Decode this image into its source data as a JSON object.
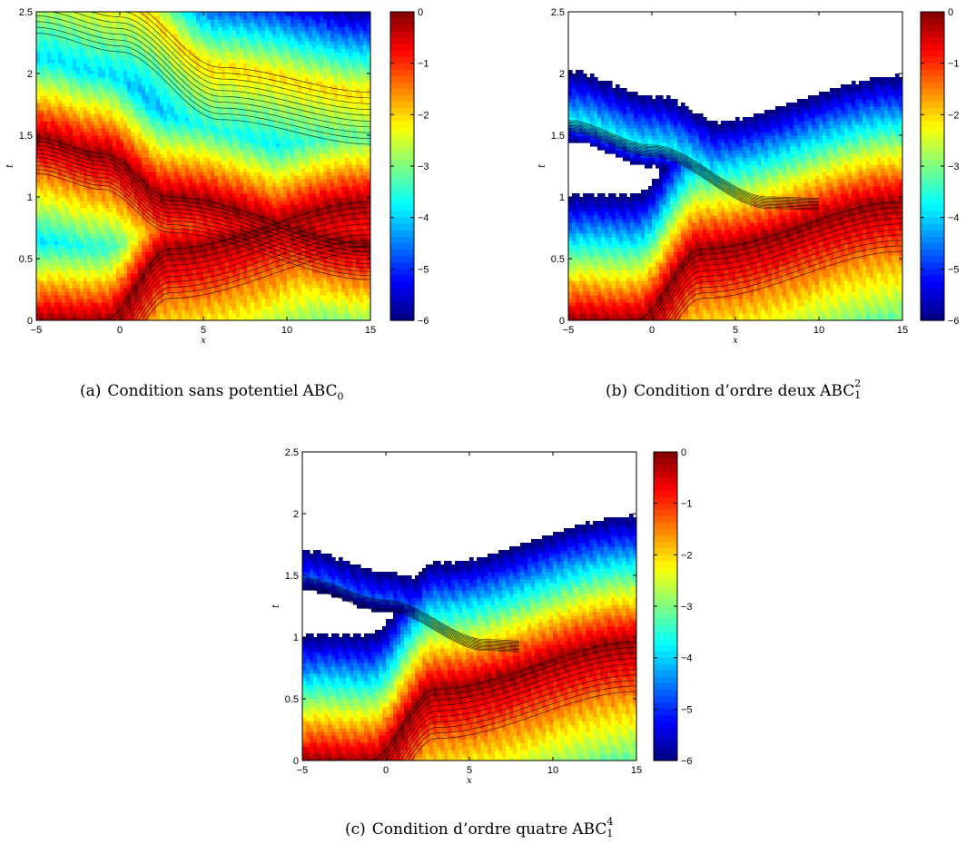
{
  "chart_data": [
    {
      "type": "contour",
      "panel": "(a)",
      "caption": {
        "label": "(a)",
        "text": "Condition sans potentiel",
        "abc": "ABC",
        "sub": "0",
        "sup": ""
      },
      "xlabel": "x",
      "ylabel": "t",
      "xlim": [
        -5,
        15
      ],
      "ylim": [
        0,
        2.5
      ],
      "xticks": [
        "−5",
        "0",
        "5",
        "10",
        "15"
      ],
      "xtick_values": [
        -5,
        0,
        5,
        10,
        15
      ],
      "yticks": [
        "0",
        "0.5",
        "1",
        "1.5",
        "2",
        "2.5"
      ],
      "ytick_values": [
        0,
        0.5,
        1,
        1.5,
        2,
        2.5
      ],
      "colorbar": {
        "ticks": [
          "0",
          "−1",
          "−2",
          "−3",
          "−4",
          "−5",
          "−6"
        ],
        "values": [
          0,
          -1,
          -2,
          -3,
          -4,
          -5,
          -6
        ],
        "range": [
          -6,
          0
        ]
      },
      "field": {
        "bands": [
          {
            "a": [
              -5,
              0.0
            ],
            "b": [
              -1,
              0.0
            ],
            "c": [
              3,
              0.58
            ],
            "d": [
              15,
              0.96
            ],
            "decay": 1.8,
            "offset": 0
          },
          {
            "a": [
              -5,
              1.48
            ],
            "b": [
              -1,
              1.35
            ],
            "c": [
              3,
              1.0
            ],
            "d": [
              15,
              0.62
            ],
            "decay": 1.3,
            "offset": 0
          },
          {
            "a": [
              -5,
              2.75
            ],
            "b": [
              0,
              2.6
            ],
            "c": [
              6,
              2.05
            ],
            "d": [
              15,
              1.85
            ],
            "decay": 1.9,
            "offset": -1.9
          }
        ],
        "ripples": true
      }
    },
    {
      "type": "contour",
      "panel": "(b)",
      "caption": {
        "label": "(b)",
        "text": "Condition d’ordre deux",
        "abc": "ABC",
        "sub": "1",
        "sup": "2"
      },
      "xlabel": "x",
      "ylabel": "t",
      "xlim": [
        -5,
        15
      ],
      "ylim": [
        0,
        2.5
      ],
      "xticks": [
        "−5",
        "0",
        "5",
        "10",
        "15"
      ],
      "xtick_values": [
        -5,
        0,
        5,
        10,
        15
      ],
      "yticks": [
        "0",
        "0.5",
        "1",
        "1.5",
        "2",
        "2.5"
      ],
      "ytick_values": [
        0,
        0.5,
        1,
        1.5,
        2,
        2.5
      ],
      "colorbar": {
        "ticks": [
          "0",
          "−1",
          "−2",
          "−3",
          "−4",
          "−5",
          "−6"
        ],
        "values": [
          0,
          -1,
          -2,
          -3,
          -4,
          -5,
          -6
        ],
        "range": [
          -6,
          0
        ]
      },
      "field": {
        "bands": [
          {
            "a": [
              -5,
              0.0
            ],
            "b": [
              -1,
              0.0
            ],
            "c": [
              3,
              0.58
            ],
            "d": [
              15,
              0.96
            ],
            "decay": 1.8,
            "offset": 0
          },
          {
            "a": [
              -5,
              1.62
            ],
            "b": [
              0,
              1.42
            ],
            "c": [
              7,
              1.0
            ],
            "d": [
              10,
              0.99
            ],
            "decay": 0.42,
            "offset": -3.6
          }
        ],
        "ripples": true
      }
    },
    {
      "type": "contour",
      "panel": "(c)",
      "caption": {
        "label": "(c)",
        "text": "Condition d’ordre quatre",
        "abc": "ABC",
        "sub": "1",
        "sup": "4"
      },
      "xlabel": "x",
      "ylabel": "t",
      "xlim": [
        -5,
        15
      ],
      "ylim": [
        0,
        2.5
      ],
      "xticks": [
        "−5",
        "0",
        "5",
        "10",
        "15"
      ],
      "xtick_values": [
        -5,
        0,
        5,
        10,
        15
      ],
      "yticks": [
        "0",
        "0.5",
        "1",
        "1.5",
        "2",
        "2.5"
      ],
      "ytick_values": [
        0,
        0.5,
        1,
        1.5,
        2,
        2.5
      ],
      "colorbar": {
        "ticks": [
          "0",
          "−1",
          "−2",
          "−3",
          "−4",
          "−5",
          "−6"
        ],
        "values": [
          0,
          -1,
          -2,
          -3,
          -4,
          -5,
          -6
        ],
        "range": [
          -6,
          0
        ]
      },
      "field": {
        "bands": [
          {
            "a": [
              -5,
              0.0
            ],
            "b": [
              -1,
              0.0
            ],
            "c": [
              3,
              0.58
            ],
            "d": [
              15,
              0.96
            ],
            "decay": 1.8,
            "offset": 0
          },
          {
            "a": [
              -5,
              1.48
            ],
            "b": [
              0,
              1.3
            ],
            "c": [
              6,
              0.98
            ],
            "d": [
              8,
              0.97
            ],
            "decay": 0.4,
            "offset": -4.6
          }
        ],
        "ripples": true
      }
    }
  ]
}
